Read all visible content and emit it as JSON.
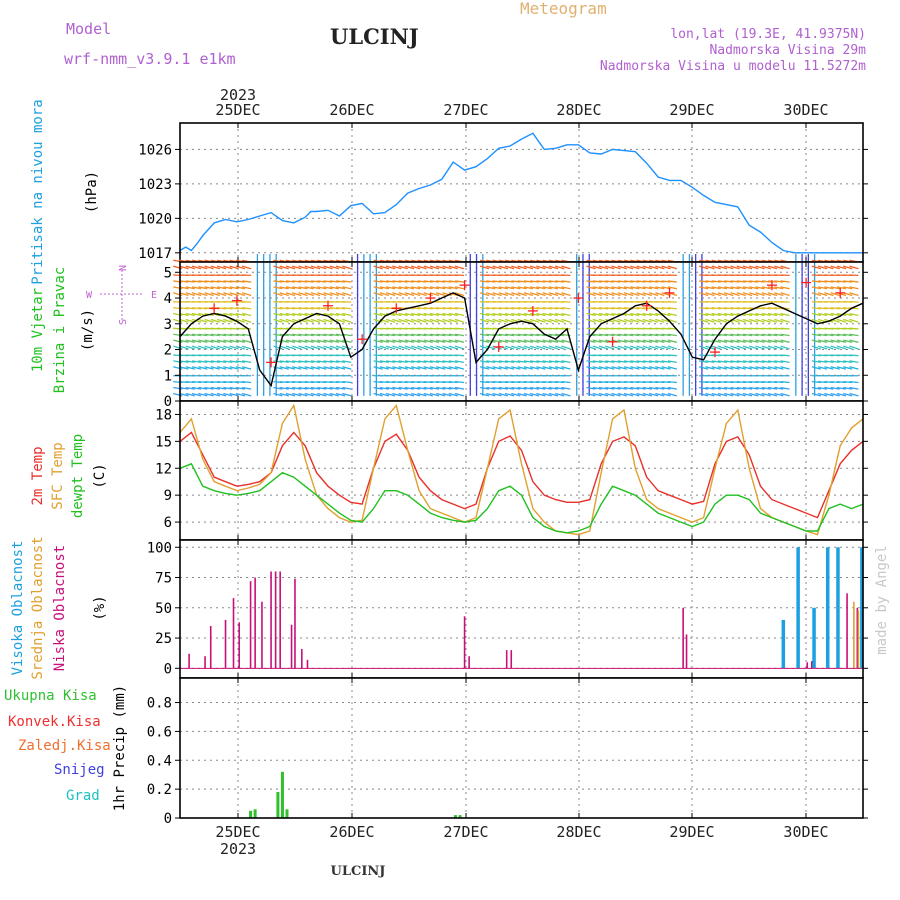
{
  "header": {
    "model_label": "Model",
    "model_name": "wrf-nmm_v3.9.1 e1km",
    "title": "ULCINJ",
    "meteogram_label": "Meteogram",
    "location_line": "lon,lat (19.3E, 41.9375N)",
    "elevation_line": "Nadmorska Visina 29m",
    "model_elevation_line": "Nadmorska Visina u modelu 11.5272m"
  },
  "footer": {
    "station": "ULCINJ",
    "credit": "made by Angel"
  },
  "time_axis": {
    "year": "2023",
    "days": [
      "25DEC",
      "26DEC",
      "27DEC",
      "28DEC",
      "29DEC",
      "30DEC"
    ]
  },
  "wind_compass": {
    "n": "N",
    "w": "W",
    "e": "E",
    "s": "S"
  },
  "colors": {
    "pressure": "#1e90ff",
    "wind_speed": "#000000",
    "wind_gust": "#ff2020",
    "temp_2m": "#e8302a",
    "temp_sfc": "#e0a030",
    "temp_dewpt": "#20c020",
    "cloud_high": "#1ea0e0",
    "cloud_mid": "#e0a030",
    "cloud_low": "#c8107a",
    "precip_total": "#30c030",
    "precip_conv": "#f03030",
    "precip_frz": "#f07030",
    "precip_snow": "#4040e0",
    "precip_grad": "#20c0c0"
  },
  "chart_data": [
    {
      "type": "line",
      "ylabel": "(hPa)",
      "side_labels": [
        "Pritisak na nivou mora"
      ],
      "yticks": [
        1017,
        1020,
        1023,
        1026
      ],
      "ylim": [
        1016.2,
        1028.3
      ],
      "x_range_days": [
        0,
        6
      ],
      "grid": true,
      "series": [
        {
          "name": "Pritisak na nivou mora",
          "x": [
            0,
            0.05,
            0.1,
            0.15,
            0.2,
            0.3,
            0.4,
            0.5,
            0.6,
            0.7,
            0.8,
            0.9,
            1.0,
            1.1,
            1.15,
            1.2,
            1.3,
            1.4,
            1.5,
            1.6,
            1.7,
            1.8,
            1.9,
            2.0,
            2.1,
            2.2,
            2.3,
            2.4,
            2.5,
            2.6,
            2.7,
            2.8,
            2.9,
            3.0,
            3.1,
            3.2,
            3.3,
            3.4,
            3.5,
            3.6,
            3.7,
            3.8,
            3.9,
            4.0,
            4.1,
            4.2,
            4.3,
            4.4,
            4.5,
            4.6,
            4.7,
            4.8,
            4.9,
            5.0,
            5.1,
            5.2,
            5.3,
            5.4,
            5.5,
            5.6,
            5.7,
            5.8,
            5.9,
            6.0
          ],
          "values": [
            1017.2,
            1017.5,
            1017.2,
            1017.8,
            1018.5,
            1019.6,
            1019.9,
            1019.7,
            1019.9,
            1020.2,
            1020.5,
            1019.8,
            1019.6,
            1020.1,
            1020.6,
            1020.6,
            1020.7,
            1020.2,
            1021.1,
            1021.3,
            1020.4,
            1020.5,
            1021.2,
            1022.2,
            1022.6,
            1022.9,
            1023.4,
            1024.9,
            1024.2,
            1024.5,
            1025.2,
            1026.1,
            1026.3,
            1026.9,
            1027.4,
            1026.0,
            1026.1,
            1026.4,
            1026.4,
            1025.7,
            1025.6,
            1026.0,
            1025.9,
            1025.8,
            1024.8,
            1023.6,
            1023.3,
            1023.3,
            1022.7,
            1022.0,
            1021.4,
            1021.2,
            1021.0,
            1019.4,
            1018.8,
            1017.9,
            1017.2,
            1017.0,
            1017.0,
            1017.0,
            1017.0,
            1017.0,
            1017.0,
            1017.0
          ]
        }
      ]
    },
    {
      "type": "line",
      "ylabel": "(m/s)",
      "side_labels": [
        "10m Vjetar",
        "Brzina i Pravac"
      ],
      "yticks": [
        0,
        1,
        2,
        3,
        4,
        5
      ],
      "ylim": [
        0,
        5.4
      ],
      "x_range_days": [
        0,
        6
      ],
      "grid": true,
      "series": [
        {
          "name": "Brzina",
          "x": [
            0,
            0.1,
            0.2,
            0.3,
            0.4,
            0.5,
            0.6,
            0.7,
            0.8,
            0.9,
            1.0,
            1.1,
            1.2,
            1.3,
            1.4,
            1.5,
            1.6,
            1.7,
            1.8,
            1.9,
            2.0,
            2.1,
            2.2,
            2.3,
            2.4,
            2.5,
            2.6,
            2.7,
            2.8,
            2.9,
            3.0,
            3.1,
            3.2,
            3.3,
            3.4,
            3.5,
            3.6,
            3.7,
            3.8,
            3.9,
            4.0,
            4.1,
            4.2,
            4.3,
            4.4,
            4.5,
            4.6,
            4.7,
            4.8,
            4.9,
            5.0,
            5.1,
            5.2,
            5.3,
            5.4,
            5.5,
            5.6,
            5.7,
            5.8,
            5.9,
            6.0
          ],
          "values": [
            2.5,
            3.0,
            3.3,
            3.4,
            3.3,
            3.1,
            2.8,
            1.2,
            0.6,
            2.5,
            3.0,
            3.2,
            3.4,
            3.3,
            3.0,
            1.7,
            2.0,
            2.8,
            3.3,
            3.5,
            3.6,
            3.7,
            3.8,
            4.0,
            4.2,
            4.0,
            1.5,
            2.0,
            2.8,
            3.0,
            3.1,
            3.0,
            2.6,
            2.4,
            2.8,
            1.2,
            2.5,
            3.0,
            3.2,
            3.4,
            3.7,
            3.8,
            3.5,
            3.1,
            2.6,
            1.7,
            1.6,
            2.4,
            3.0,
            3.3,
            3.5,
            3.7,
            3.8,
            3.6,
            3.4,
            3.2,
            3.0,
            3.1,
            3.3,
            3.6,
            3.8
          ]
        },
        {
          "name": "Udar",
          "x": [
            0.3,
            0.5,
            0.8,
            1.3,
            1.6,
            1.9,
            2.2,
            2.5,
            2.8,
            3.1,
            3.5,
            3.8,
            4.1,
            4.3,
            4.7,
            5.2,
            5.5,
            5.8
          ],
          "values": [
            3.6,
            3.9,
            1.5,
            3.7,
            2.4,
            3.6,
            4.0,
            4.5,
            2.1,
            3.5,
            4.0,
            2.3,
            3.7,
            4.2,
            1.9,
            4.5,
            4.6,
            4.2
          ]
        }
      ]
    },
    {
      "type": "line",
      "ylabel": "(C)",
      "side_labels": [
        "2m Temp",
        "SFC Temp",
        "dewpt Temp"
      ],
      "yticks": [
        6,
        9,
        12,
        15,
        18
      ],
      "ylim": [
        4.0,
        19.5
      ],
      "x_range_days": [
        0,
        6
      ],
      "grid": true,
      "series": [
        {
          "name": "2m Temp",
          "x": [
            0,
            0.1,
            0.2,
            0.3,
            0.4,
            0.5,
            0.6,
            0.7,
            0.8,
            0.9,
            1.0,
            1.1,
            1.2,
            1.3,
            1.4,
            1.5,
            1.6,
            1.7,
            1.8,
            1.9,
            2.0,
            2.1,
            2.2,
            2.3,
            2.4,
            2.5,
            2.6,
            2.7,
            2.8,
            2.9,
            3.0,
            3.1,
            3.2,
            3.3,
            3.4,
            3.5,
            3.6,
            3.7,
            3.8,
            3.9,
            4.0,
            4.1,
            4.2,
            4.3,
            4.4,
            4.5,
            4.6,
            4.7,
            4.8,
            4.9,
            5.0,
            5.1,
            5.2,
            5.3,
            5.4,
            5.5,
            5.6,
            5.7,
            5.8,
            5.9,
            6.0
          ],
          "values": [
            15.0,
            16.0,
            13.5,
            11.0,
            10.5,
            10.0,
            10.2,
            10.5,
            11.5,
            14.5,
            16.0,
            14.5,
            11.5,
            10.0,
            9.0,
            8.2,
            8.0,
            12.0,
            15.0,
            15.8,
            14.0,
            11.0,
            9.5,
            8.5,
            8.0,
            7.5,
            8.0,
            12.0,
            15.0,
            15.6,
            14.0,
            10.5,
            9.0,
            8.5,
            8.2,
            8.2,
            8.5,
            12.5,
            15.0,
            15.5,
            14.5,
            11.0,
            9.5,
            9.0,
            8.5,
            8.0,
            8.3,
            12.5,
            15.0,
            15.5,
            13.5,
            10.0,
            8.5,
            8.0,
            7.5,
            7.0,
            6.5,
            9.5,
            12.5,
            14.0,
            15.0
          ]
        },
        {
          "name": "SFC Temp",
          "x": [
            0,
            0.1,
            0.2,
            0.3,
            0.4,
            0.5,
            0.6,
            0.7,
            0.8,
            0.9,
            1.0,
            1.1,
            1.2,
            1.3,
            1.4,
            1.5,
            1.6,
            1.7,
            1.8,
            1.9,
            2.0,
            2.1,
            2.2,
            2.3,
            2.4,
            2.5,
            2.6,
            2.7,
            2.8,
            2.9,
            3.0,
            3.1,
            3.2,
            3.3,
            3.4,
            3.5,
            3.6,
            3.7,
            3.8,
            3.9,
            4.0,
            4.1,
            4.2,
            4.3,
            4.4,
            4.5,
            4.6,
            4.7,
            4.8,
            4.9,
            5.0,
            5.1,
            5.2,
            5.3,
            5.4,
            5.5,
            5.6,
            5.7,
            5.8,
            5.9,
            6.0
          ],
          "values": [
            16.0,
            17.5,
            13.0,
            10.5,
            10.0,
            9.5,
            9.8,
            10.2,
            11.5,
            17.0,
            19.0,
            13.0,
            9.0,
            7.5,
            6.5,
            6.0,
            6.2,
            12.0,
            17.5,
            19.0,
            14.0,
            9.5,
            7.5,
            7.0,
            6.5,
            6.0,
            6.5,
            12.0,
            17.5,
            18.5,
            12.5,
            7.5,
            6.0,
            5.0,
            4.8,
            4.6,
            5.0,
            11.5,
            17.5,
            18.5,
            12.0,
            8.5,
            7.5,
            7.0,
            6.5,
            6.0,
            6.5,
            12.0,
            17.0,
            18.5,
            12.0,
            7.5,
            6.5,
            6.0,
            5.5,
            5.0,
            4.6,
            9.0,
            14.5,
            16.5,
            17.5
          ]
        },
        {
          "name": "dewpt Temp",
          "x": [
            0,
            0.1,
            0.2,
            0.3,
            0.4,
            0.5,
            0.6,
            0.7,
            0.8,
            0.9,
            1.0,
            1.1,
            1.2,
            1.3,
            1.4,
            1.5,
            1.6,
            1.7,
            1.8,
            1.9,
            2.0,
            2.1,
            2.2,
            2.3,
            2.4,
            2.5,
            2.6,
            2.7,
            2.8,
            2.9,
            3.0,
            3.1,
            3.2,
            3.3,
            3.4,
            3.5,
            3.6,
            3.7,
            3.8,
            3.9,
            4.0,
            4.1,
            4.2,
            4.3,
            4.4,
            4.5,
            4.6,
            4.7,
            4.8,
            4.9,
            5.0,
            5.1,
            5.2,
            5.3,
            5.4,
            5.5,
            5.6,
            5.7,
            5.8,
            5.9,
            6.0
          ],
          "values": [
            12.0,
            12.5,
            10.0,
            9.5,
            9.2,
            9.0,
            9.2,
            9.5,
            10.5,
            11.5,
            11.0,
            10.0,
            9.0,
            8.0,
            7.0,
            6.2,
            6.0,
            7.5,
            9.5,
            9.5,
            9.0,
            8.0,
            7.0,
            6.5,
            6.2,
            6.0,
            6.2,
            7.5,
            9.5,
            10.0,
            9.0,
            6.5,
            5.5,
            5.0,
            4.8,
            5.0,
            5.5,
            8.0,
            10.0,
            9.5,
            9.0,
            8.0,
            7.0,
            6.5,
            6.0,
            5.5,
            6.0,
            8.0,
            9.0,
            9.0,
            8.5,
            7.0,
            6.5,
            6.0,
            5.5,
            5.0,
            5.0,
            7.5,
            8.0,
            7.5,
            8.0
          ]
        }
      ]
    },
    {
      "type": "bar",
      "ylabel": "(%)",
      "side_labels": [
        "Visoka Oblacnost",
        "Srednja Oblacnost",
        "Niska Oblacnost"
      ],
      "yticks": [
        0,
        25,
        50,
        75,
        100
      ],
      "ylim": [
        -8,
        106
      ],
      "x_range_days": [
        0,
        6
      ],
      "grid": true,
      "series": [
        {
          "name": "Niska Oblacnost",
          "x": [
            0.08,
            0.22,
            0.27,
            0.4,
            0.47,
            0.52,
            0.62,
            0.66,
            0.72,
            0.8,
            0.84,
            0.88,
            0.98,
            1.01,
            1.07,
            1.12,
            2.5,
            2.54,
            2.87,
            2.91,
            4.42,
            4.45,
            5.51,
            5.55,
            5.86,
            5.95
          ],
          "values": [
            12,
            10,
            35,
            40,
            58,
            38,
            72,
            75,
            55,
            80,
            80,
            80,
            36,
            74,
            16,
            7,
            43,
            10,
            15,
            15,
            50,
            28,
            5,
            6,
            62,
            50
          ]
        },
        {
          "name": "Visoka Oblacnost",
          "x": [
            5.3,
            5.43,
            5.57,
            5.69,
            5.78,
            5.99
          ],
          "values": [
            40,
            100,
            50,
            100,
            100,
            100
          ]
        },
        {
          "name": "Srednja Oblacnost",
          "x": [
            5.92,
            5.96
          ],
          "values": [
            55,
            48
          ]
        }
      ]
    },
    {
      "type": "bar",
      "ylabel": "1hr Precip (mm)",
      "side_labels": [
        "Ukupna Kisa",
        "Konvek.Kisa",
        "Zaledj.Kisa",
        "Snijeg",
        "Grad"
      ],
      "yticks": [
        0,
        0.2,
        0.4,
        0.6,
        0.8
      ],
      "ylim": [
        0,
        0.97
      ],
      "x_range_days": [
        0,
        6
      ],
      "grid": true,
      "series": [
        {
          "name": "Ukupna Kisa",
          "x": [
            0.62,
            0.66,
            0.86,
            0.9,
            0.94,
            0.98,
            2.42,
            2.46
          ],
          "values": [
            0.05,
            0.06,
            0.18,
            0.32,
            0.06,
            0.0,
            0.02,
            0.02
          ]
        }
      ]
    }
  ]
}
